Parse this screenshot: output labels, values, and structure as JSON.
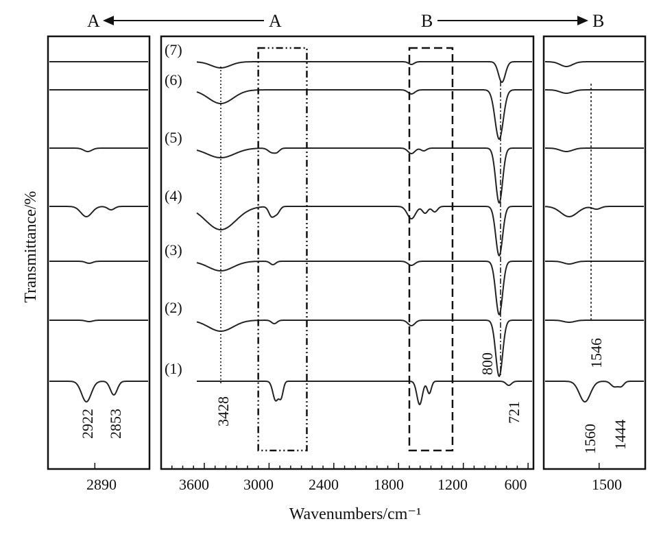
{
  "chart_data": {
    "type": "line",
    "ylabel": "Transmittance/%",
    "xlabel": "Wavenumbers/cm⁻¹",
    "series_labels": [
      "(7)",
      "(6)",
      "(5)",
      "(4)",
      "(3)",
      "(2)",
      "(1)"
    ],
    "top_labels": {
      "left_a": "A",
      "right_a": "A",
      "left_b": "B",
      "right_b": "B"
    },
    "panels": [
      {
        "name": "left",
        "xlim": [
          2950,
          2820
        ],
        "xticks": [
          2890
        ],
        "xtick_labels": [
          "2890"
        ]
      },
      {
        "name": "main",
        "xlim": [
          4000,
          550
        ],
        "xticks": [
          3600,
          3000,
          2400,
          1800,
          1200,
          600
        ],
        "xtick_labels": [
          "3600",
          "3000",
          "2400",
          "1800",
          "1200",
          "600"
        ]
      },
      {
        "name": "right",
        "xlim": [
          1620,
          1400
        ],
        "xticks": [
          1500
        ],
        "xtick_labels": [
          "1500"
        ]
      }
    ],
    "annotations": {
      "a3428": "3428",
      "a2922": "2922",
      "a2853": "2853",
      "a800": "800",
      "a721": "721",
      "a1546": "1546",
      "a1560": "1560",
      "a1444": "1444"
    },
    "highlighted_regions": [
      {
        "name": "region-a",
        "x_range": [
          3100,
          2650
        ],
        "style": "dash-dot"
      },
      {
        "name": "region-b",
        "x_range": [
          1700,
          1300
        ],
        "style": "dashed"
      }
    ]
  }
}
